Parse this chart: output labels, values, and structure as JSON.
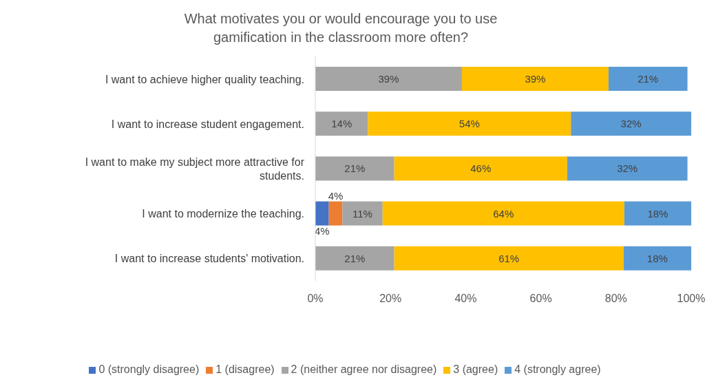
{
  "chart_data": {
    "type": "bar",
    "orientation": "horizontal",
    "stacked": true,
    "title": "What motivates you or would encourage you to use gamification in the classroom more often?",
    "categories": [
      "I want to achieve higher quality teaching.",
      "I want to increase student engagement.",
      "I want to make my subject more attractive for students.",
      "I want to modernize the teaching.",
      "I want to increase students' motivation."
    ],
    "series": [
      {
        "name": "0 (strongly disagree)",
        "color": "#4472c4",
        "values": [
          null,
          null,
          null,
          3.6,
          null
        ],
        "value_labels": [
          null,
          null,
          null,
          "4%",
          null
        ]
      },
      {
        "name": "1 (disagree)",
        "color": "#ed7d31",
        "values": [
          null,
          null,
          null,
          3.6,
          null
        ],
        "value_labels": [
          null,
          null,
          null,
          "4%",
          null
        ]
      },
      {
        "name": "2 (neither agree nor disagree)",
        "color": "#a5a5a5",
        "values": [
          39,
          14,
          21,
          10.7,
          21
        ],
        "value_labels": [
          "39%",
          "14%",
          "21%",
          "11%",
          "21%"
        ]
      },
      {
        "name": "3 (agree)",
        "color": "#ffc000",
        "values": [
          39,
          54,
          46,
          64.3,
          61
        ],
        "value_labels": [
          "39%",
          "54%",
          "46%",
          "64%",
          "61%"
        ]
      },
      {
        "name": "4 (strongly agree)",
        "color": "#5b9bd5",
        "values": [
          21,
          32,
          32,
          17.8,
          18
        ],
        "value_labels": [
          "21%",
          "32%",
          "32%",
          "18%",
          "18%"
        ]
      }
    ],
    "xlim": [
      0,
      100
    ],
    "xticks": [
      {
        "value": 0,
        "label": "0%"
      },
      {
        "value": 20,
        "label": "20%"
      },
      {
        "value": 40,
        "label": "40%"
      },
      {
        "value": 60,
        "label": "60%"
      },
      {
        "value": 80,
        "label": "80%"
      },
      {
        "value": 100,
        "label": "100%"
      }
    ],
    "grid": false,
    "legend": "bottom"
  }
}
